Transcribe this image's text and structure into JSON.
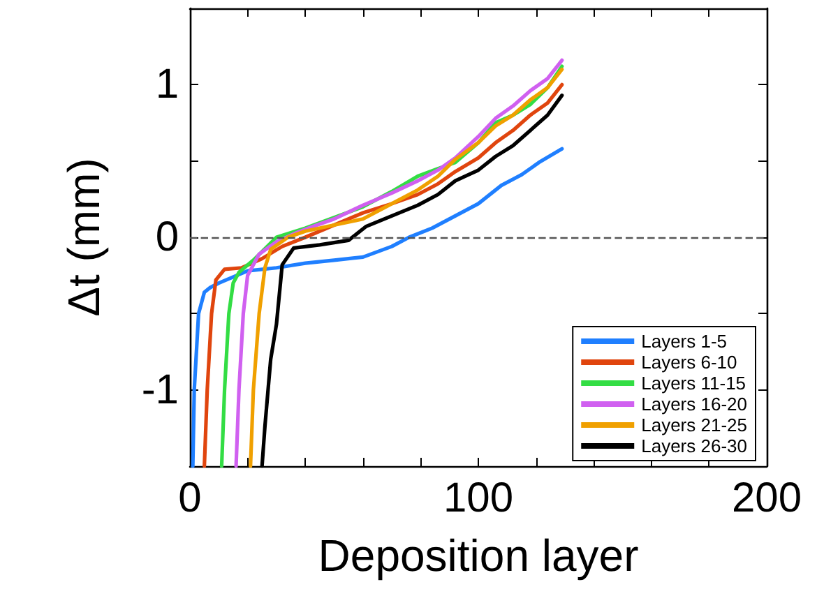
{
  "chart_data": {
    "type": "line",
    "xlabel": "Deposition layer",
    "ylabel": "Δt (mm)",
    "xlim": [
      0,
      200
    ],
    "ylim": [
      -1.5,
      1.5
    ],
    "xticks": [
      0,
      {
        "value": 20,
        "label": null
      },
      {
        "value": 40,
        "label": null
      },
      {
        "value": 60,
        "label": null
      },
      {
        "value": 80,
        "label": null
      },
      100,
      {
        "value": 120,
        "label": null
      },
      {
        "value": 140,
        "label": null
      },
      {
        "value": 160,
        "label": null
      },
      {
        "value": 180,
        "label": null
      },
      200
    ],
    "yticks": [
      {
        "value": -1.5,
        "label": null
      },
      -1,
      {
        "value": -0.5,
        "label": null
      },
      0,
      {
        "value": 0.5,
        "label": null
      },
      1,
      {
        "value": 1.5,
        "label": null
      }
    ],
    "grid": false,
    "legend": "bottom right",
    "marker": "none",
    "line_style": "solid",
    "ref_lines": [
      {
        "axis": "y",
        "value": 0,
        "label": null,
        "color": "#555555",
        "line_style": "dashed"
      }
    ],
    "series": [
      {
        "name": "Layers 1-5",
        "color": "#1f7fff",
        "x": [
          1,
          1.5,
          3,
          5,
          7,
          10,
          20,
          30,
          40,
          50,
          60,
          70,
          76,
          84,
          92,
          100,
          108,
          115,
          121,
          129
        ],
        "values": [
          -1.5,
          -1,
          -0.5,
          -0.36,
          -0.33,
          -0.3,
          -0.22,
          -0.2,
          -0.17,
          -0.15,
          -0.13,
          -0.06,
          0,
          0.06,
          0.14,
          0.22,
          0.34,
          0.41,
          0.49,
          0.58
        ]
      },
      {
        "name": "Layers 6-10",
        "color": "#e0450e",
        "x": [
          5,
          6,
          7.5,
          9,
          12,
          18,
          25,
          32,
          40,
          50,
          60,
          70,
          79,
          86,
          92,
          100,
          106,
          112,
          118,
          124,
          129
        ],
        "values": [
          -1.5,
          -1,
          -0.5,
          -0.28,
          -0.21,
          -0.2,
          -0.14,
          -0.06,
          0,
          0.08,
          0.16,
          0.22,
          0.28,
          0.35,
          0.43,
          0.52,
          0.62,
          0.7,
          0.8,
          0.88,
          1.0
        ]
      },
      {
        "name": "Layers 11-15",
        "color": "#33dd44",
        "x": [
          11,
          12,
          13.5,
          15,
          17,
          22,
          30,
          40,
          50,
          60,
          70,
          79,
          86,
          92,
          100,
          106,
          112,
          118,
          124,
          129
        ],
        "values": [
          -1.5,
          -1,
          -0.5,
          -0.3,
          -0.23,
          -0.15,
          0,
          0.06,
          0.13,
          0.2,
          0.3,
          0.4,
          0.45,
          0.49,
          0.62,
          0.75,
          0.8,
          0.87,
          0.98,
          1.12
        ]
      },
      {
        "name": "Layers 16-20",
        "color": "#d060f0",
        "x": [
          16,
          17,
          18.5,
          20,
          24,
          30,
          37,
          44,
          50,
          60,
          70,
          79,
          86,
          92,
          100,
          106,
          112,
          118,
          124,
          129
        ],
        "values": [
          -1.5,
          -1,
          -0.5,
          -0.25,
          -0.11,
          -0.03,
          0.03,
          0.08,
          0.12,
          0.21,
          0.29,
          0.37,
          0.44,
          0.52,
          0.66,
          0.78,
          0.86,
          0.96,
          1.04,
          1.16
        ]
      },
      {
        "name": "Layers 21-25",
        "color": "#f0a000",
        "x": [
          21,
          22,
          24,
          26,
          28,
          34,
          40,
          50,
          60,
          70,
          79,
          86,
          92,
          100,
          106,
          112,
          118,
          124,
          129
        ],
        "values": [
          -1.5,
          -1,
          -0.5,
          -0.2,
          -0.08,
          0,
          0.04,
          0.08,
          0.12,
          0.22,
          0.31,
          0.4,
          0.51,
          0.62,
          0.73,
          0.8,
          0.9,
          0.98,
          1.1
        ]
      },
      {
        "name": "Layers 26-30",
        "color": "#000000",
        "x": [
          25,
          26,
          28,
          30,
          32,
          36,
          45,
          55,
          61,
          70,
          79,
          86,
          92,
          100,
          106,
          112,
          118,
          124,
          129
        ],
        "values": [
          -1.5,
          -1.24,
          -0.8,
          -0.57,
          -0.18,
          -0.07,
          -0.05,
          -0.02,
          0.07,
          0.14,
          0.21,
          0.28,
          0.37,
          0.44,
          0.53,
          0.6,
          0.7,
          0.8,
          0.93
        ]
      }
    ]
  }
}
